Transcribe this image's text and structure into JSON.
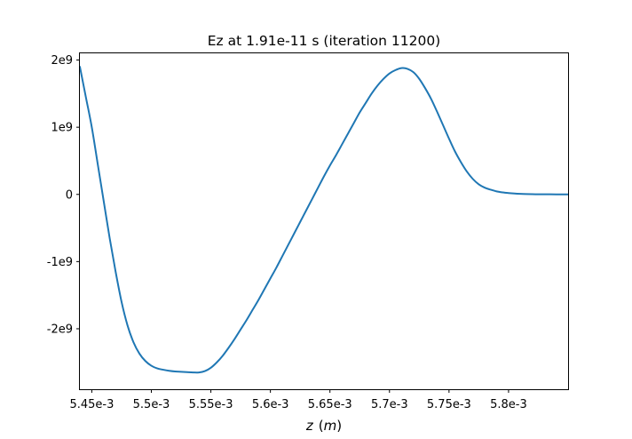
{
  "chart_data": {
    "type": "line",
    "title": "Ez at 1.91e-11 s   (iteration 11200)",
    "xlabel": "z (m)",
    "xlabel_var": "z",
    "xlabel_unit": "m",
    "ylabel": "",
    "xlim": [
      0.00544,
      0.00585
    ],
    "ylim": [
      -2900000000.0,
      2100000000.0
    ],
    "x_ticks": [
      {
        "value": 0.00545,
        "label": "5.45e-3"
      },
      {
        "value": 0.0055,
        "label": "5.5e-3"
      },
      {
        "value": 0.00555,
        "label": "5.55e-3"
      },
      {
        "value": 0.0056,
        "label": "5.6e-3"
      },
      {
        "value": 0.00565,
        "label": "5.65e-3"
      },
      {
        "value": 0.0057,
        "label": "5.7e-3"
      },
      {
        "value": 0.00575,
        "label": "5.75e-3"
      },
      {
        "value": 0.0058,
        "label": "5.8e-3"
      }
    ],
    "y_ticks": [
      {
        "value": 2000000000.0,
        "label": "2e9"
      },
      {
        "value": 1000000000.0,
        "label": "1e9"
      },
      {
        "value": 0,
        "label": "0"
      },
      {
        "value": -1000000000.0,
        "label": "-1e9"
      },
      {
        "value": -2000000000.0,
        "label": "-2e9"
      }
    ],
    "grid": false,
    "color": "#1f77b4",
    "series": [
      {
        "x": [
          0.00544,
          0.005445,
          0.00545,
          0.005455,
          0.00546,
          0.005465,
          0.00547,
          0.005475,
          0.00548,
          0.005485,
          0.00549,
          0.005495,
          0.0055,
          0.005505,
          0.00551,
          0.005515,
          0.00552,
          0.005525,
          0.00553,
          0.005535,
          0.00554,
          0.005545,
          0.00555,
          0.005555,
          0.00556,
          0.005565,
          0.00557,
          0.005575,
          0.00558,
          0.005585,
          0.00559,
          0.005595,
          0.0056,
          0.005605,
          0.00561,
          0.005615,
          0.00562,
          0.005625,
          0.00563,
          0.005635,
          0.00564,
          0.005645,
          0.00565,
          0.005655,
          0.00566,
          0.005665,
          0.00567,
          0.005675,
          0.00568,
          0.005685,
          0.00569,
          0.005695,
          0.0057,
          0.005705,
          0.00571,
          0.005715,
          0.00572,
          0.005725,
          0.00573,
          0.005735,
          0.00574,
          0.005745,
          0.00575,
          0.005755,
          0.00576,
          0.005765,
          0.00577,
          0.005775,
          0.00578,
          0.005785,
          0.00579,
          0.005795,
          0.0058,
          0.005805,
          0.00581,
          0.005815,
          0.00582,
          0.005825,
          0.00583,
          0.005835,
          0.00584,
          0.005845,
          0.00585
        ],
        "y": [
          1900000000.0,
          1450000000.0,
          1000000000.0,
          450000000.0,
          -100000000.0,
          -650000000.0,
          -1150000000.0,
          -1600000000.0,
          -1950000000.0,
          -2200000000.0,
          -2370000000.0,
          -2480000000.0,
          -2550000000.0,
          -2590000000.0,
          -2610000000.0,
          -2625000000.0,
          -2635000000.0,
          -2640000000.0,
          -2645000000.0,
          -2650000000.0,
          -2650000000.0,
          -2630000000.0,
          -2580000000.0,
          -2500000000.0,
          -2400000000.0,
          -2280000000.0,
          -2150000000.0,
          -2010000000.0,
          -1870000000.0,
          -1720000000.0,
          -1570000000.0,
          -1410000000.0,
          -1250000000.0,
          -1090000000.0,
          -920000000.0,
          -750000000.0,
          -580000000.0,
          -410000000.0,
          -240000000.0,
          -70000000.0,
          100000000.0,
          270000000.0,
          430000000.0,
          580000000.0,
          740000000.0,
          900000000.0,
          1060000000.0,
          1220000000.0,
          1360000000.0,
          1500000000.0,
          1620000000.0,
          1720000000.0,
          1800000000.0,
          1850000000.0,
          1880000000.0,
          1870000000.0,
          1820000000.0,
          1720000000.0,
          1580000000.0,
          1420000000.0,
          1230000000.0,
          1030000000.0,
          830000000.0,
          640000000.0,
          480000000.0,
          340000000.0,
          230000000.0,
          150000000.0,
          100000000.0,
          70000000.0,
          45000000.0,
          30000000.0,
          20000000.0,
          13000000.0,
          8000000.0,
          5000000.0,
          3000000.0,
          2000000.0,
          1500000.0,
          1000000.0,
          500000.0,
          300000.0,
          200000.0
        ]
      }
    ]
  }
}
